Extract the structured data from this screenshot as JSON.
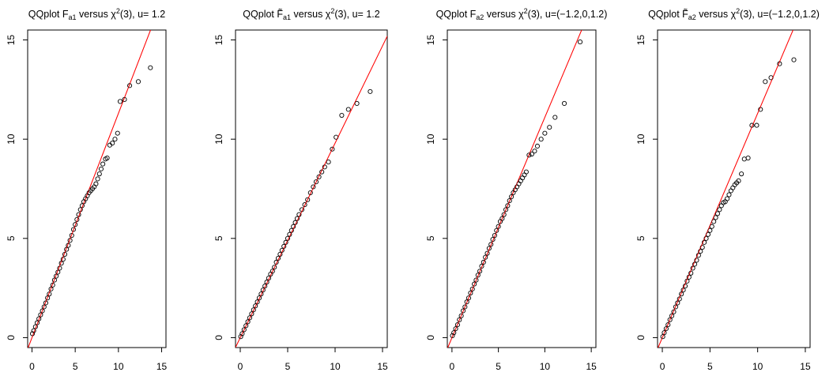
{
  "chart_data": [
    {
      "type": "scatter",
      "title": {
        "prefix": "QQplot F",
        "sub": "a1",
        "mid": " versus χ",
        "sup": "2",
        "suffix": "(3), u= 1.2"
      },
      "xlim": [
        -0.5,
        15.5
      ],
      "ylim": [
        -0.5,
        15.5
      ],
      "x_ticks": [
        "0",
        "5",
        "10",
        "15"
      ],
      "y_ticks": [
        "0",
        "5",
        "10",
        "15"
      ],
      "reference_line": {
        "slope": 1.13,
        "intercept": 0,
        "color": "#ff0000"
      },
      "point_color": "#000000",
      "x": [
        0.05,
        0.2,
        0.4,
        0.6,
        0.8,
        1.0,
        1.2,
        1.4,
        1.6,
        1.8,
        2.0,
        2.2,
        2.4,
        2.6,
        2.8,
        3.0,
        3.2,
        3.4,
        3.6,
        3.8,
        4.0,
        4.2,
        4.4,
        4.6,
        4.8,
        5.0,
        5.2,
        5.4,
        5.6,
        5.8,
        6.0,
        6.2,
        6.4,
        6.6,
        6.8,
        7.0,
        7.2,
        7.4,
        7.6,
        7.8,
        8.0,
        8.2,
        8.5,
        8.7,
        9.0,
        9.3,
        9.6,
        9.9,
        10.2,
        10.7,
        11.3,
        12.3,
        13.7
      ],
      "y": [
        0.2,
        0.35,
        0.55,
        0.75,
        0.95,
        1.15,
        1.35,
        1.55,
        1.75,
        2.0,
        2.2,
        2.45,
        2.65,
        2.9,
        3.1,
        3.3,
        3.5,
        3.75,
        3.95,
        4.2,
        4.45,
        4.65,
        4.9,
        5.15,
        5.45,
        5.7,
        5.95,
        6.2,
        6.45,
        6.65,
        6.85,
        7.0,
        7.15,
        7.3,
        7.4,
        7.5,
        7.6,
        7.75,
        8.0,
        8.25,
        8.5,
        8.75,
        9.0,
        9.05,
        9.7,
        9.8,
        10.0,
        10.3,
        11.9,
        12.0,
        12.7,
        12.9,
        13.6
      ]
    },
    {
      "type": "scatter",
      "title": {
        "prefix": "QQplot F̃",
        "sub": "a1",
        "mid": "  versus  χ",
        "sup": "2",
        "suffix": "(3), u= 1.2"
      },
      "xlim": [
        -0.5,
        15.5
      ],
      "ylim": [
        -0.5,
        15.5
      ],
      "x_ticks": [
        "0",
        "5",
        "10",
        "15"
      ],
      "y_ticks": [
        "0",
        "5",
        "10",
        "15"
      ],
      "reference_line": {
        "slope": 0.98,
        "intercept": 0,
        "color": "#ff0000"
      },
      "point_color": "#000000",
      "x": [
        0.05,
        0.2,
        0.4,
        0.6,
        0.8,
        1.0,
        1.2,
        1.4,
        1.6,
        1.8,
        2.0,
        2.2,
        2.4,
        2.6,
        2.8,
        3.0,
        3.2,
        3.4,
        3.6,
        3.8,
        4.0,
        4.2,
        4.4,
        4.6,
        4.8,
        5.0,
        5.2,
        5.4,
        5.6,
        5.8,
        6.0,
        6.2,
        6.5,
        6.8,
        7.1,
        7.4,
        7.7,
        8.0,
        8.3,
        8.6,
        8.9,
        9.3,
        9.7,
        10.1,
        10.7,
        11.4,
        12.3,
        13.7
      ],
      "y": [
        0.05,
        0.2,
        0.4,
        0.6,
        0.8,
        1.0,
        1.2,
        1.4,
        1.6,
        1.8,
        2.0,
        2.2,
        2.4,
        2.6,
        2.8,
        3.0,
        3.2,
        3.35,
        3.55,
        3.8,
        4.0,
        4.2,
        4.4,
        4.6,
        4.8,
        5.0,
        5.2,
        5.4,
        5.6,
        5.8,
        6.0,
        6.2,
        6.45,
        6.7,
        6.95,
        7.3,
        7.6,
        7.85,
        8.1,
        8.35,
        8.6,
        8.85,
        9.5,
        10.1,
        11.2,
        11.5,
        11.8,
        12.4
      ]
    },
    {
      "type": "scatter",
      "title": {
        "prefix": "QQplot F",
        "sub": "a2",
        "mid": " versus χ",
        "sup": "2",
        "suffix": "(3), u=(−1.2,0,1.2)"
      },
      "xlim": [
        -0.5,
        15.5
      ],
      "ylim": [
        -0.5,
        15.5
      ],
      "x_ticks": [
        "0",
        "5",
        "10",
        "15"
      ],
      "y_ticks": [
        "0",
        "5",
        "10",
        "15"
      ],
      "reference_line": {
        "slope": 1.11,
        "intercept": 0,
        "color": "#ff0000"
      },
      "point_color": "#000000",
      "x": [
        0.05,
        0.2,
        0.4,
        0.6,
        0.8,
        1.0,
        1.2,
        1.4,
        1.6,
        1.8,
        2.0,
        2.2,
        2.4,
        2.6,
        2.8,
        3.0,
        3.2,
        3.4,
        3.6,
        3.8,
        4.0,
        4.2,
        4.4,
        4.6,
        4.8,
        5.0,
        5.2,
        5.4,
        5.6,
        5.8,
        6.0,
        6.2,
        6.4,
        6.6,
        6.8,
        7.0,
        7.2,
        7.4,
        7.6,
        7.8,
        8.0,
        8.3,
        8.6,
        8.9,
        9.2,
        9.6,
        10.0,
        10.5,
        11.1,
        12.1,
        13.8
      ],
      "y": [
        0.1,
        0.25,
        0.45,
        0.65,
        0.9,
        1.1,
        1.35,
        1.55,
        1.8,
        2.0,
        2.25,
        2.45,
        2.7,
        2.9,
        3.15,
        3.35,
        3.6,
        3.8,
        4.05,
        4.25,
        4.5,
        4.7,
        4.95,
        5.15,
        5.4,
        5.6,
        5.85,
        6.0,
        6.2,
        6.45,
        6.65,
        6.9,
        7.1,
        7.3,
        7.45,
        7.6,
        7.75,
        7.9,
        8.05,
        8.2,
        8.35,
        9.2,
        9.25,
        9.4,
        9.65,
        10.0,
        10.3,
        10.6,
        11.1,
        11.8,
        14.9
      ]
    },
    {
      "type": "scatter",
      "title": {
        "prefix": "QQplot F̃",
        "sub": "a2",
        "mid": "  versus  χ",
        "sup": "2",
        "suffix": "(3), u=(−1.2,0,1.2)"
      },
      "xlim": [
        -0.5,
        15.5
      ],
      "ylim": [
        -0.5,
        15.5
      ],
      "x_ticks": [
        "0",
        "5",
        "10",
        "15"
      ],
      "y_ticks": [
        "0",
        "5",
        "10",
        "15"
      ],
      "reference_line": {
        "slope": 1.13,
        "intercept": 0,
        "color": "#ff0000"
      },
      "point_color": "#000000",
      "x": [
        0.05,
        0.2,
        0.4,
        0.6,
        0.8,
        1.0,
        1.2,
        1.4,
        1.6,
        1.8,
        2.0,
        2.2,
        2.4,
        2.6,
        2.8,
        3.0,
        3.2,
        3.4,
        3.6,
        3.8,
        4.0,
        4.2,
        4.4,
        4.6,
        4.8,
        5.0,
        5.2,
        5.4,
        5.6,
        5.8,
        6.0,
        6.2,
        6.4,
        6.6,
        6.8,
        7.0,
        7.2,
        7.4,
        7.6,
        7.8,
        8.0,
        8.3,
        8.6,
        9.0,
        9.4,
        9.9,
        10.3,
        10.8,
        11.4,
        12.3,
        13.8
      ],
      "y": [
        0.05,
        0.25,
        0.45,
        0.65,
        0.9,
        1.1,
        1.3,
        1.55,
        1.75,
        1.95,
        2.2,
        2.4,
        2.6,
        2.85,
        3.05,
        3.25,
        3.5,
        3.7,
        3.9,
        4.15,
        4.35,
        4.55,
        4.8,
        5.0,
        5.2,
        5.4,
        5.6,
        5.85,
        6.05,
        6.25,
        6.45,
        6.65,
        6.8,
        6.85,
        7.0,
        7.2,
        7.4,
        7.55,
        7.7,
        7.8,
        7.9,
        8.25,
        9.0,
        9.05,
        10.7,
        10.7,
        11.5,
        12.9,
        13.1,
        13.8,
        14.0
      ]
    }
  ]
}
